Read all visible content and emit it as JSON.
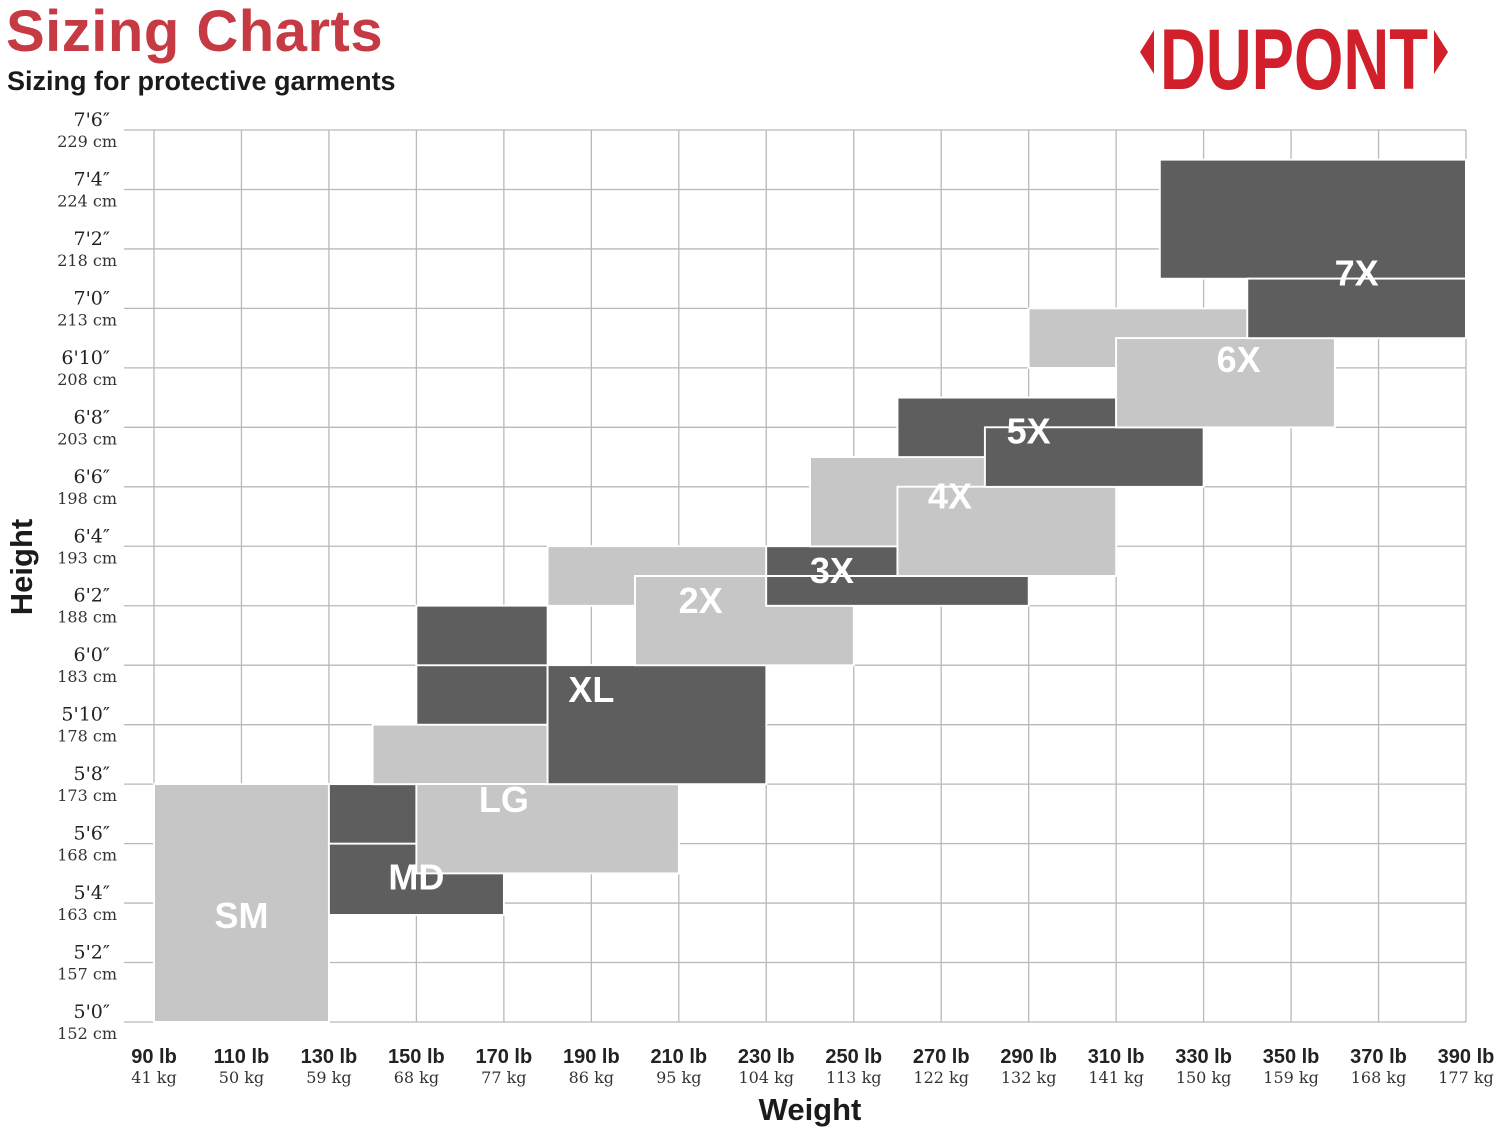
{
  "header": {
    "title": "Sizing Charts",
    "subtitle": "Sizing for protective garments",
    "logo_text": "DUPONT"
  },
  "colors": {
    "title_red": "#c63a44",
    "logo_red": "#d11f2b",
    "dark_fill": "#5e5e5e",
    "light_fill": "#c6c6c6",
    "grid": "#b9b9b9"
  },
  "chart_data": {
    "type": "heatmap",
    "title": "Sizing Charts",
    "subtitle": "Sizing for protective garments",
    "xlabel": "Weight",
    "ylabel": "Height",
    "x_unit": "lb",
    "y_unit": "in",
    "xlim": [
      90,
      390
    ],
    "ylim": [
      60,
      90
    ],
    "grid": true,
    "x_ticks": [
      {
        "lb": "90 lb",
        "kg": "41 kg"
      },
      {
        "lb": "110 lb",
        "kg": "50 kg"
      },
      {
        "lb": "130 lb",
        "kg": "59 kg"
      },
      {
        "lb": "150 lb",
        "kg": "68 kg"
      },
      {
        "lb": "170 lb",
        "kg": "77 kg"
      },
      {
        "lb": "190 lb",
        "kg": "86 kg"
      },
      {
        "lb": "210 lb",
        "kg": "95 kg"
      },
      {
        "lb": "230 lb",
        "kg": "104 kg"
      },
      {
        "lb": "250 lb",
        "kg": "113 kg"
      },
      {
        "lb": "270 lb",
        "kg": "122 kg"
      },
      {
        "lb": "290 lb",
        "kg": "132 kg"
      },
      {
        "lb": "310 lb",
        "kg": "141 kg"
      },
      {
        "lb": "330 lb",
        "kg": "150 kg"
      },
      {
        "lb": "350 lb",
        "kg": "159 kg"
      },
      {
        "lb": "370 lb",
        "kg": "168 kg"
      },
      {
        "lb": "390 lb",
        "kg": "177 kg"
      }
    ],
    "y_ticks": [
      {
        "ft": "5'0″",
        "cm": "152 cm"
      },
      {
        "ft": "5'2″",
        "cm": "157 cm"
      },
      {
        "ft": "5'4″",
        "cm": "163 cm"
      },
      {
        "ft": "5'6″",
        "cm": "168 cm"
      },
      {
        "ft": "5'8″",
        "cm": "173 cm"
      },
      {
        "ft": "5'10″",
        "cm": "178 cm"
      },
      {
        "ft": "6'0″",
        "cm": "183 cm"
      },
      {
        "ft": "6'2″",
        "cm": "188 cm"
      },
      {
        "ft": "6'4″",
        "cm": "193 cm"
      },
      {
        "ft": "6'6″",
        "cm": "198 cm"
      },
      {
        "ft": "6'8″",
        "cm": "203 cm"
      },
      {
        "ft": "6'10″",
        "cm": "208 cm"
      },
      {
        "ft": "7'0″",
        "cm": "213 cm"
      },
      {
        "ft": "7'2″",
        "cm": "218 cm"
      },
      {
        "ft": "7'4″",
        "cm": "224 cm"
      },
      {
        "ft": "7'6″",
        "cm": "229 cm"
      }
    ],
    "sizes": [
      {
        "name": "SM",
        "shade": "light",
        "label_at": [
          110,
          63.6
        ],
        "regions": [
          {
            "w": [
              90,
              130
            ],
            "h": [
              60,
              68
            ]
          }
        ]
      },
      {
        "name": "MD",
        "shade": "dark",
        "label_at": [
          150,
          64.9
        ],
        "regions": [
          {
            "w": [
              130,
              170
            ],
            "h": [
              63.6,
              66
            ]
          },
          {
            "w": [
              130,
              150
            ],
            "h": [
              66,
              68
            ]
          }
        ]
      },
      {
        "name": "LG",
        "shade": "light",
        "label_at": [
          170,
          67.5
        ],
        "regions": [
          {
            "w": [
              140,
              190
            ],
            "h": [
              68,
              70
            ]
          },
          {
            "w": [
              150,
              210
            ],
            "h": [
              65,
              68
            ]
          }
        ]
      },
      {
        "name": "XL",
        "shade": "dark",
        "label_at": [
          190,
          71.2
        ],
        "regions": [
          {
            "w": [
              150,
              180
            ],
            "h": [
              70,
              74
            ]
          },
          {
            "w": [
              180,
              230
            ],
            "h": [
              68,
              72
            ]
          },
          {
            "w": [
              150,
              180
            ],
            "h": [
              72,
              74
            ]
          }
        ]
      },
      {
        "name": "2X",
        "shade": "light",
        "label_at": [
          215,
          74.2
        ],
        "regions": [
          {
            "w": [
              180,
              230
            ],
            "h": [
              74,
              76
            ]
          },
          {
            "w": [
              200,
              250
            ],
            "h": [
              72,
              75
            ]
          }
        ]
      },
      {
        "name": "3X",
        "shade": "dark",
        "label_at": [
          245,
          75.2
        ],
        "regions": [
          {
            "w": [
              230,
              260
            ],
            "h": [
              74,
              76
            ]
          },
          {
            "w": [
              230,
              290
            ],
            "h": [
              74,
              75
            ]
          }
        ]
      },
      {
        "name": "4X",
        "shade": "light",
        "label_at": [
          272,
          77.7
        ],
        "regions": [
          {
            "w": [
              240,
              280
            ],
            "h": [
              76,
              79
            ]
          },
          {
            "w": [
              260,
              310
            ],
            "h": [
              75,
              78
            ]
          }
        ]
      },
      {
        "name": "5X",
        "shade": "dark",
        "label_at": [
          290,
          79.9
        ],
        "regions": [
          {
            "w": [
              260,
              310
            ],
            "h": [
              79,
              81
            ]
          },
          {
            "w": [
              280,
              330
            ],
            "h": [
              78,
              80
            ]
          }
        ]
      },
      {
        "name": "6X",
        "shade": "light",
        "label_at": [
          338,
          82.3
        ],
        "regions": [
          {
            "w": [
              290,
              340
            ],
            "h": [
              82,
              84
            ]
          },
          {
            "w": [
              310,
              360
            ],
            "h": [
              80,
              83
            ]
          }
        ]
      },
      {
        "name": "7X",
        "shade": "dark",
        "label_at": [
          365,
          85.2
        ],
        "regions": [
          {
            "w": [
              320,
              390
            ],
            "h": [
              85,
              89
            ]
          },
          {
            "w": [
              340,
              390
            ],
            "h": [
              83,
              85
            ]
          }
        ]
      }
    ]
  }
}
